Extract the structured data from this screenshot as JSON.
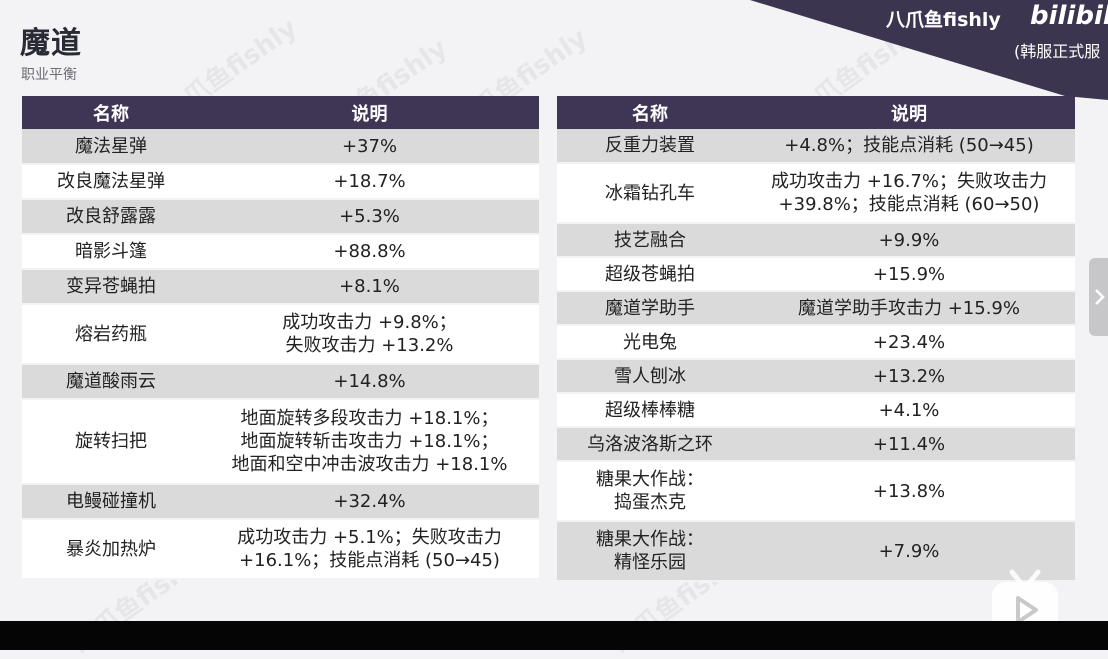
{
  "header": {
    "title": "魔道",
    "subtitle": "职业平衡"
  },
  "banner": {
    "name": "八爪鱼fishly",
    "brand": "bilibili",
    "sub": "(韩服正式服"
  },
  "watermark": "八爪鱼fishly",
  "colors": {
    "header_bg": "#3f3656",
    "row_gray": "#dadada",
    "row_white": "#ffffff",
    "banner_bg": "#3c3550"
  },
  "table_left": {
    "headers": [
      "名称",
      "说明"
    ],
    "rows": [
      {
        "name": "魔法星弹",
        "desc": [
          "+37%"
        ]
      },
      {
        "name": "改良魔法星弹",
        "desc": [
          "+18.7%"
        ]
      },
      {
        "name": "改良舒露露",
        "desc": [
          "+5.3%"
        ]
      },
      {
        "name": "暗影斗篷",
        "desc": [
          "+88.8%"
        ]
      },
      {
        "name": "变异苍蝇拍",
        "desc": [
          "+8.1%"
        ]
      },
      {
        "name": "熔岩药瓶",
        "desc": [
          "成功攻击力 +9.8%；",
          "失败攻击力 +13.2%"
        ]
      },
      {
        "name": "魔道酸雨云",
        "desc": [
          "+14.8%"
        ]
      },
      {
        "name": "旋转扫把",
        "desc": [
          "地面旋转多段攻击力 +18.1%；",
          "地面旋转斩击攻击力 +18.1%；",
          "地面和空中冲击波攻击力 +18.1%"
        ]
      },
      {
        "name": "电鳗碰撞机",
        "desc": [
          "+32.4%"
        ]
      },
      {
        "name": "暴炎加热炉",
        "desc": [
          "成功攻击力 +5.1%；失败攻击力",
          "+16.1%；技能点消耗 (50→45)"
        ]
      }
    ]
  },
  "table_right": {
    "headers": [
      "名称",
      "说明"
    ],
    "rows": [
      {
        "name": [
          "反重力装置"
        ],
        "desc": [
          "+4.8%；技能点消耗 (50→45)"
        ]
      },
      {
        "name": [
          "冰霜钻孔车"
        ],
        "desc": [
          "成功攻击力 +16.7%；失败攻击力",
          "+39.8%；技能点消耗 (60→50)"
        ]
      },
      {
        "name": [
          "技艺融合"
        ],
        "desc": [
          "+9.9%"
        ]
      },
      {
        "name": [
          "超级苍蝇拍"
        ],
        "desc": [
          "+15.9%"
        ]
      },
      {
        "name": [
          "魔道学助手"
        ],
        "desc": [
          "魔道学助手攻击力 +15.9%"
        ]
      },
      {
        "name": [
          "光电兔"
        ],
        "desc": [
          "+23.4%"
        ]
      },
      {
        "name": [
          "雪人刨冰"
        ],
        "desc": [
          "+13.2%"
        ]
      },
      {
        "name": [
          "超级棒棒糖"
        ],
        "desc": [
          "+4.1%"
        ]
      },
      {
        "name": [
          "乌洛波洛斯之环"
        ],
        "desc": [
          "+11.4%"
        ]
      },
      {
        "name": [
          "糖果大作战：",
          "捣蛋杰克"
        ],
        "desc": [
          "+13.8%"
        ]
      },
      {
        "name": [
          "糖果大作战：",
          "精怪乐园"
        ],
        "desc": [
          "+7.9%"
        ]
      }
    ]
  }
}
